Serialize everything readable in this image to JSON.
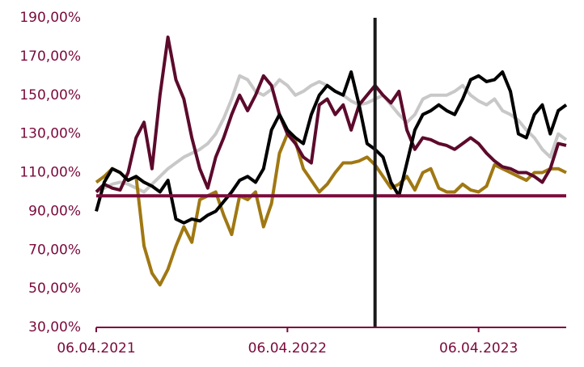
{
  "chart_data": {
    "type": "line",
    "categories": [
      "06.04.2021",
      null,
      null,
      null,
      null,
      null,
      null,
      null,
      null,
      null,
      null,
      null,
      null,
      null,
      null,
      null,
      null,
      null,
      null,
      null,
      null,
      null,
      null,
      null,
      "06.04.2022",
      null,
      null,
      null,
      null,
      null,
      null,
      null,
      null,
      null,
      null,
      null,
      null,
      null,
      null,
      null,
      null,
      null,
      null,
      null,
      null,
      null,
      null,
      null,
      "06.04.2023",
      null,
      null,
      null,
      null,
      null,
      null,
      null,
      null,
      null,
      null,
      null
    ],
    "series": [
      {
        "color": "#c8c8c8",
        "values": [
          100,
          102,
          104,
          105,
          104,
          102,
          100,
          104,
          108,
          112,
          115,
          118,
          120,
          122,
          125,
          130,
          138,
          148,
          160,
          158,
          152,
          150,
          153,
          158,
          155,
          150,
          152,
          155,
          157,
          155,
          152,
          150,
          147,
          145,
          146,
          148,
          150,
          145,
          140,
          136,
          140,
          148,
          150,
          150,
          150,
          152,
          155,
          150,
          147,
          145,
          148,
          142,
          140,
          137,
          132,
          128,
          122,
          118,
          130,
          127
        ]
      },
      {
        "color": "#a07812",
        "values": [
          105,
          108,
          112,
          110,
          106,
          108,
          72,
          58,
          52,
          60,
          72,
          82,
          74,
          96,
          98,
          100,
          88,
          78,
          98,
          96,
          100,
          82,
          94,
          120,
          130,
          126,
          112,
          106,
          100,
          104,
          110,
          115,
          115,
          116,
          118,
          114,
          108,
          102,
          104,
          108,
          101,
          110,
          112,
          102,
          100,
          100,
          104,
          101,
          100,
          103,
          114,
          112,
          110,
          108,
          106,
          110,
          110,
          112,
          112,
          110
        ]
      },
      {
        "color": "#5c0a2c",
        "values": [
          100,
          104,
          102,
          101,
          110,
          128,
          136,
          112,
          150,
          180,
          158,
          148,
          128,
          112,
          102,
          118,
          128,
          140,
          150,
          142,
          150,
          160,
          155,
          140,
          130,
          125,
          118,
          115,
          145,
          148,
          140,
          145,
          132,
          145,
          150,
          155,
          150,
          146,
          152,
          132,
          122,
          128,
          127,
          125,
          124,
          122,
          125,
          128,
          125,
          120,
          116,
          113,
          112,
          110,
          110,
          108,
          105,
          112,
          125,
          124
        ]
      },
      {
        "color": "#000000",
        "values": [
          90,
          105,
          112,
          110,
          106,
          108,
          105,
          103,
          100,
          106,
          86,
          84,
          86,
          85,
          88,
          90,
          95,
          100,
          106,
          108,
          105,
          112,
          132,
          140,
          132,
          128,
          125,
          140,
          150,
          155,
          152,
          150,
          162,
          145,
          125,
          122,
          118,
          105,
          98,
          115,
          132,
          140,
          142,
          145,
          142,
          140,
          148,
          158,
          160,
          157,
          158,
          162,
          152,
          130,
          128,
          140,
          145,
          130,
          142,
          145
        ]
      }
    ],
    "ylim": [
      30,
      190
    ],
    "yticks": [
      {
        "value": 30,
        "label": "30,00%"
      },
      {
        "value": 50,
        "label": "50,00%"
      },
      {
        "value": 70,
        "label": "70,00%"
      },
      {
        "value": 90,
        "label": "90,00%"
      },
      {
        "value": 110,
        "label": "110,00%"
      },
      {
        "value": 130,
        "label": "130,00%"
      },
      {
        "value": 150,
        "label": "150,00%"
      },
      {
        "value": 170,
        "label": "170,00%"
      },
      {
        "value": 190,
        "label": "190,00%"
      }
    ],
    "hline": {
      "value": 98,
      "color": "#7a0a3c"
    },
    "vline": {
      "index": 35,
      "color": "#1a1a1a"
    },
    "axis_color": "#7a0a3c"
  }
}
